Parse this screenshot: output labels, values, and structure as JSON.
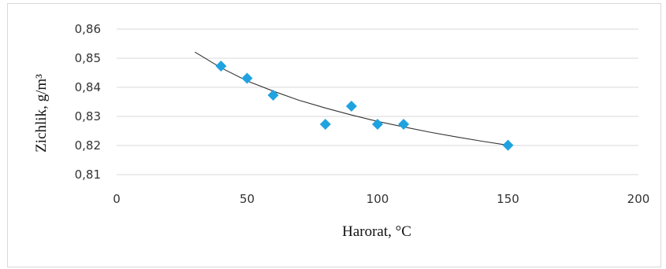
{
  "chart_data": {
    "type": "scatter",
    "title": "",
    "xlabel": "Harorat, °C",
    "ylabel": "Zichlik, g/m³",
    "xlim": [
      0,
      200
    ],
    "ylim": [
      0.81,
      0.86
    ],
    "x_ticks": [
      0,
      50,
      100,
      150,
      200
    ],
    "x_tick_labels": [
      "0",
      "50",
      "100",
      "150",
      "200"
    ],
    "y_ticks": [
      0.81,
      0.82,
      0.83,
      0.84,
      0.85,
      0.86
    ],
    "y_tick_labels": [
      "0,81",
      "0,82",
      "0,83",
      "0,84",
      "0,85",
      "0,86"
    ],
    "grid": true,
    "legend": "none",
    "marker_color": "#1fa3e0",
    "marker_shape": "diamond",
    "series": [
      {
        "x": [
          40,
          50,
          60,
          80,
          90,
          100,
          110,
          150
        ],
        "y": [
          0.8473,
          0.8431,
          0.8373,
          0.8273,
          0.8335,
          0.8273,
          0.8273,
          0.8201
        ]
      }
    ],
    "trendline": {
      "type": "power",
      "x": [
        30,
        40,
        50,
        60,
        70,
        80,
        90,
        100,
        110,
        120,
        130,
        140,
        150
      ],
      "y": [
        0.8521,
        0.8467,
        0.8422,
        0.8387,
        0.8355,
        0.8329,
        0.8305,
        0.8283,
        0.8264,
        0.8246,
        0.823,
        0.8215,
        0.8201
      ]
    }
  }
}
